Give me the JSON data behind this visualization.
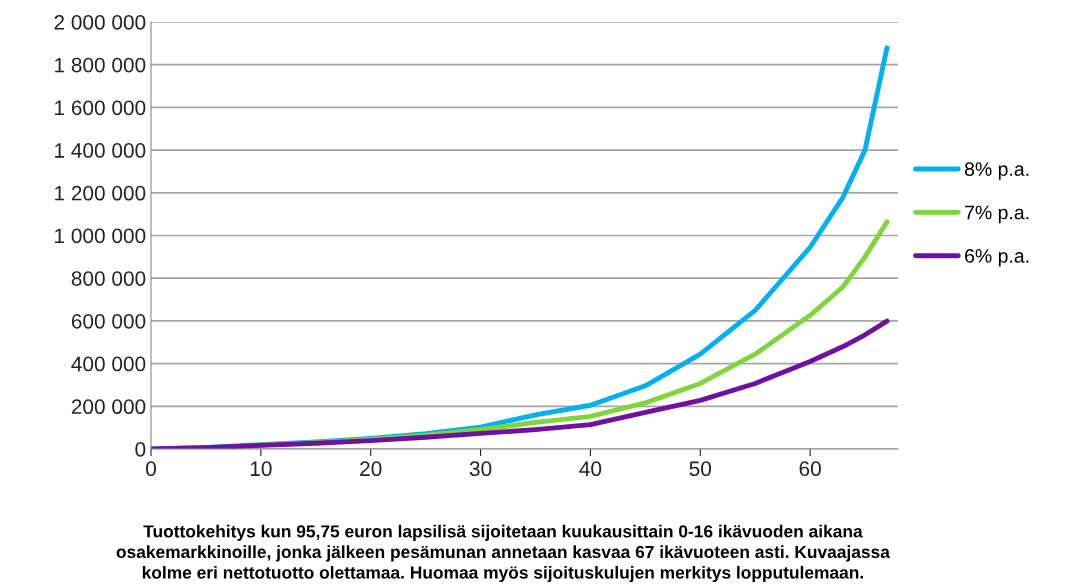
{
  "chart_data": {
    "type": "line",
    "x": [
      0,
      5,
      10,
      15,
      20,
      25,
      30,
      35,
      40,
      45,
      50,
      55,
      60,
      63,
      65,
      67
    ],
    "series": [
      {
        "name": "8% p.a.",
        "color": "#00b0f0",
        "values": [
          0,
          7000,
          20000,
          33000,
          50000,
          72000,
          102000,
          160000,
          205000,
          296000,
          444000,
          649000,
          945000,
          1180000,
          1401000,
          1879000
        ]
      },
      {
        "name": "7% p.a.",
        "color": "#7fd63c",
        "values": [
          null,
          null,
          19000,
          30000,
          45000,
          65000,
          91000,
          125000,
          153000,
          216000,
          307000,
          444000,
          626000,
          760000,
          900000,
          1064000
        ]
      },
      {
        "name": "6% p.a.",
        "color": "#7010a0",
        "values": [
          0,
          6000,
          17000,
          27000,
          39000,
          55000,
          73000,
          91000,
          114000,
          171000,
          228000,
          307000,
          410000,
          480000,
          535000,
          599000
        ]
      }
    ],
    "xlim": [
      0,
      68
    ],
    "xticks": [
      0,
      10,
      20,
      30,
      40,
      50,
      60
    ],
    "ylim": [
      0,
      2000000
    ],
    "yticks": [
      {
        "value": 0,
        "label": "0"
      },
      {
        "value": 200000,
        "label": "200 000"
      },
      {
        "value": 400000,
        "label": "400 000"
      },
      {
        "value": 600000,
        "label": "600 000"
      },
      {
        "value": 800000,
        "label": "800 000"
      },
      {
        "value": 1000000,
        "label": "1 000 000"
      },
      {
        "value": 1200000,
        "label": "1 200 000"
      },
      {
        "value": 1400000,
        "label": "1 400 000"
      },
      {
        "value": 1600000,
        "label": "1 600 000"
      },
      {
        "value": 1800000,
        "label": "1 800 000"
      },
      {
        "value": 2000000,
        "label": "2 000 000"
      }
    ],
    "grid": "y",
    "legend": "right",
    "marker": "none",
    "line_style": "solid",
    "annotations": [
      "Tuottokehitys kun 95,75 euron lapsilisä sijoitetaan kuukausittain 0-16 ikävuoden aikana\nosakemarkkinoille, jonka jälkeen pesämunan annetaan kasvaa 67 ikävuoteen asti. Kuvaajassa\nkolme eri nettotuotto olettamaa. Huomaa myös sijoituskulujen merkitys lopputulemaan."
    ]
  }
}
